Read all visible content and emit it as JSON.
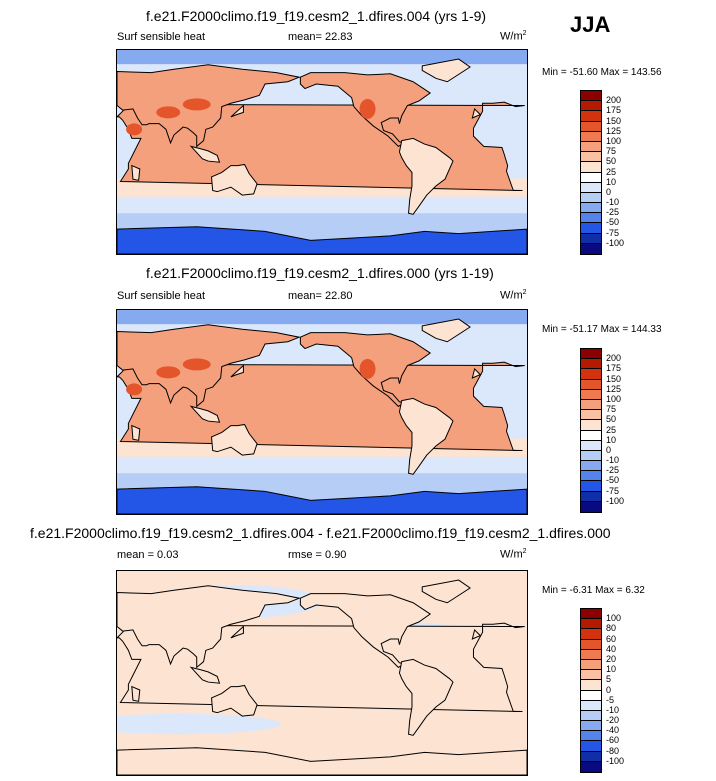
{
  "season": "JJA",
  "panels": [
    {
      "title": "f.e21.F2000climo.f19_f19.cesm2_1.dfires.004 (yrs 1-9)",
      "left_label": "Surf sensible heat",
      "center_label": "mean=  22.83",
      "units": "W/m",
      "units_exp": "2",
      "minmax": "Min = -51.60 Max = 143.56",
      "kind": "field"
    },
    {
      "title": "f.e21.F2000climo.f19_f19.cesm2_1.dfires.000 (yrs 1-19)",
      "left_label": "Surf sensible heat",
      "center_label": "mean=  22.80",
      "units": "W/m",
      "units_exp": "2",
      "minmax": "Min = -51.17 Max = 144.33",
      "kind": "field"
    },
    {
      "title": "f.e21.F2000climo.f19_f19.cesm2_1.dfires.004 - f.e21.F2000climo.f19_f19.cesm2_1.dfires.000",
      "left_label": "mean =   0.03",
      "center_label": "rmse =  0.90",
      "units": "W/m",
      "units_exp": "2",
      "minmax": "Min =  -6.31 Max =   6.32",
      "kind": "diff"
    }
  ],
  "colorbars": {
    "field": {
      "labels": [
        "200",
        "175",
        "150",
        "125",
        "100",
        "75",
        "50",
        "25",
        "10",
        "0",
        "-10",
        "-25",
        "-50",
        "-75",
        "-100"
      ],
      "colors": [
        "#8b0000",
        "#b41a00",
        "#d2330f",
        "#e5552c",
        "#ef7a52",
        "#f5a07c",
        "#f9c1a4",
        "#fde3d2",
        "#ffffff",
        "#dbe8fb",
        "#b6cdf5",
        "#86aaf0",
        "#5483ec",
        "#2356e6",
        "#0f2fa6",
        "#0a0a80"
      ]
    },
    "diff": {
      "labels": [
        "100",
        "80",
        "60",
        "40",
        "20",
        "10",
        "5",
        "0",
        "-5",
        "-10",
        "-20",
        "-40",
        "-60",
        "-80",
        "-100"
      ],
      "colors": [
        "#8b0000",
        "#b41a00",
        "#d2330f",
        "#e5552c",
        "#ef7a52",
        "#f5a07c",
        "#f9c1a4",
        "#fde3d2",
        "#ffffff",
        "#dbe8fb",
        "#b6cdf5",
        "#86aaf0",
        "#5483ec",
        "#2356e6",
        "#0f2fa6",
        "#0a0a80"
      ]
    }
  },
  "chart_data": [
    {
      "type": "heatmap",
      "title": "f.e21.F2000climo.f19_f19.cesm2_1.dfires.004 (yrs 1-9)",
      "variable": "Surf sensible heat",
      "units": "W/m2",
      "mean": 22.83,
      "min": -51.6,
      "max": 143.56,
      "contour_levels": [
        -100,
        -75,
        -50,
        -25,
        -10,
        0,
        10,
        25,
        50,
        75,
        100,
        125,
        150,
        175,
        200
      ]
    },
    {
      "type": "heatmap",
      "title": "f.e21.F2000climo.f19_f19.cesm2_1.dfires.000 (yrs 1-19)",
      "variable": "Surf sensible heat",
      "units": "W/m2",
      "mean": 22.8,
      "min": -51.17,
      "max": 144.33,
      "contour_levels": [
        -100,
        -75,
        -50,
        -25,
        -10,
        0,
        10,
        25,
        50,
        75,
        100,
        125,
        150,
        175,
        200
      ]
    },
    {
      "type": "heatmap",
      "title": "f.e21.F2000climo.f19_f19.cesm2_1.dfires.004 - f.e21.F2000climo.f19_f19.cesm2_1.dfires.000",
      "units": "W/m2",
      "mean": 0.03,
      "rmse": 0.9,
      "min": -6.31,
      "max": 6.32,
      "contour_levels": [
        -100,
        -80,
        -60,
        -40,
        -20,
        -10,
        -5,
        0,
        5,
        10,
        20,
        40,
        60,
        80,
        100
      ]
    }
  ]
}
